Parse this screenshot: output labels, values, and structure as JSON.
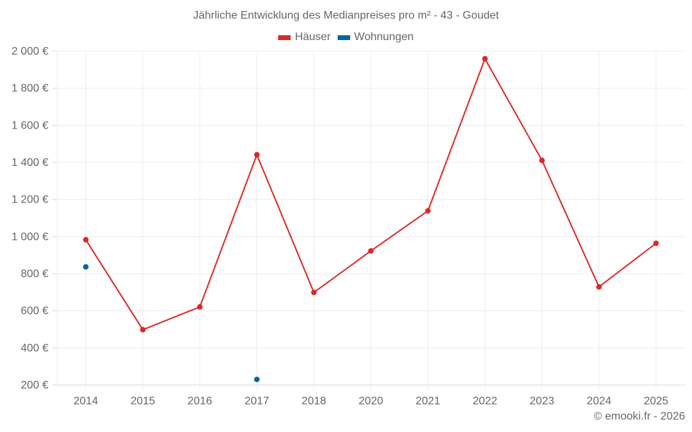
{
  "chart_data": {
    "type": "line",
    "title": "Jährliche Entwicklung des Medianpreises pro m² - 43 - Goudet",
    "xlabel": "",
    "ylabel": "",
    "categories": [
      "2014",
      "2015",
      "2016",
      "2017",
      "2018",
      "2020",
      "2021",
      "2022",
      "2023",
      "2024",
      "2025"
    ],
    "series": [
      {
        "name": "Häuser",
        "color": "#dc2828",
        "values": [
          983,
          498,
          621,
          1441,
          699,
          923,
          1139,
          1959,
          1411,
          729,
          964
        ]
      },
      {
        "name": "Wohnungen",
        "color": "#0b64a0",
        "values": [
          837,
          null,
          null,
          230,
          null,
          null,
          null,
          null,
          null,
          null,
          null
        ]
      }
    ],
    "ylim": [
      200,
      2000
    ],
    "yticks": [
      200,
      400,
      600,
      800,
      1000,
      1200,
      1400,
      1600,
      1800,
      2000
    ],
    "ytick_labels": [
      "200 €",
      "400 €",
      "600 €",
      "800 €",
      "1 000 €",
      "1 200 €",
      "1 400 €",
      "1 600 €",
      "1 800 €",
      "2 000 €"
    ],
    "grid": true,
    "legend_position": "top"
  },
  "legend": [
    {
      "label": "Häuser",
      "color": "#dc2828"
    },
    {
      "label": "Wohnungen",
      "color": "#0b64a0"
    }
  ],
  "credit": "© emooki.fr - 2026"
}
